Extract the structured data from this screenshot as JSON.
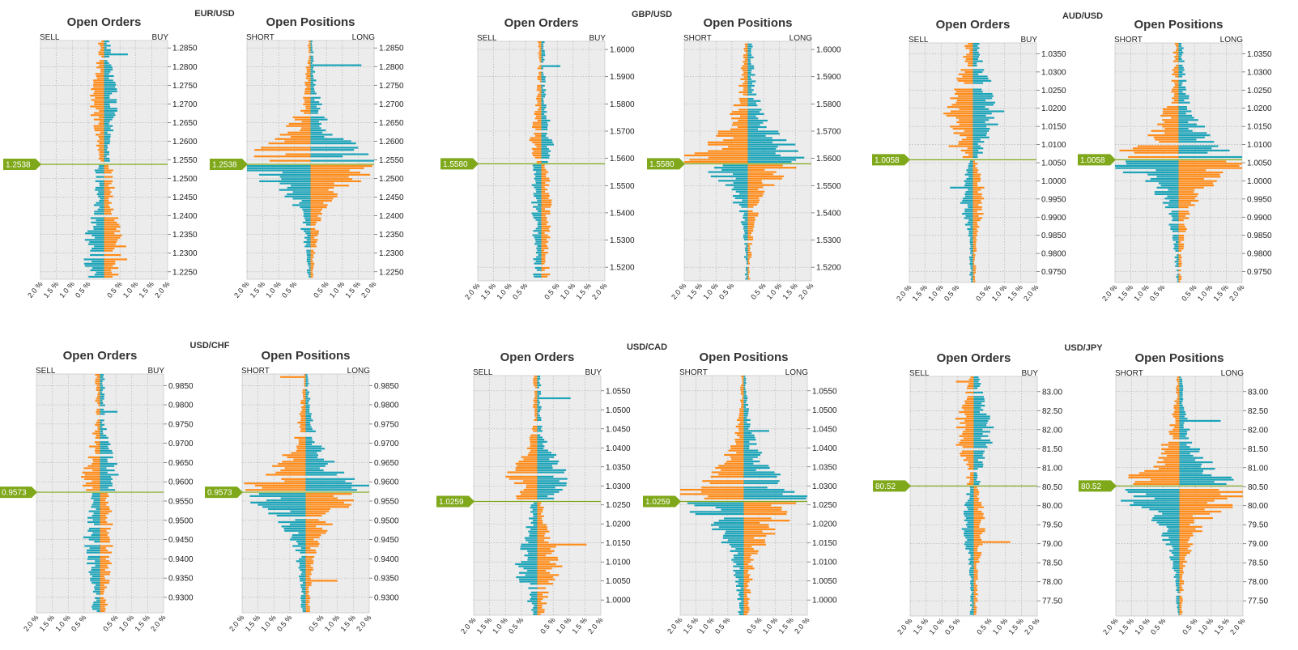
{
  "colors": {
    "orange": "#ff8c1a",
    "teal": "#1ba3b8",
    "grid": "#aaaaaa",
    "plot_bg": "#ececec",
    "marker": "#7fa81a"
  },
  "chart_data": [
    {
      "pair": "EUR/USD",
      "current": "1.2538",
      "current_value": 1.2538,
      "ylim": [
        1.223,
        1.287
      ],
      "yticks": [
        "1.2850",
        "1.2800",
        "1.2750",
        "1.2700",
        "1.2650",
        "1.2600",
        "1.2550",
        "1.2500",
        "1.2450",
        "1.2400",
        "1.2350",
        "1.2300",
        "1.2250"
      ],
      "xticks": [
        "2.0 %",
        "1.5 %",
        "1.0 %",
        "0.5 %",
        "0.5 %",
        "1.0 %",
        "1.5 %",
        "2.0 %"
      ],
      "orders": {
        "type": "bar",
        "title": "Open Orders",
        "left_label": "SELL",
        "right_label": "BUY",
        "above": {
          "shape": "flat",
          "peak": 0.35,
          "at": 1.27,
          "base": 0.15,
          "spike": 0.75,
          "left": "orange",
          "right": "teal"
        },
        "below": {
          "shape": "flat",
          "peak": 0.55,
          "at": 1.23,
          "base": 0.25,
          "spike": 1.45,
          "left": "teal",
          "right": "orange"
        }
      },
      "positions": {
        "type": "bar",
        "title": "Open Positions",
        "left_label": "SHORT",
        "right_label": "LONG",
        "above": {
          "shape": "peak",
          "peak": 1.95,
          "at": 1.255,
          "base": 0.05,
          "spike": 1.6,
          "left": "orange",
          "right": "teal"
        },
        "below": {
          "shape": "peak",
          "peak": 2.0,
          "at": 1.253,
          "base": 0.05,
          "spike": 1.2,
          "left": "teal",
          "right": "orange"
        }
      }
    },
    {
      "pair": "GBP/USD",
      "current": "1.5580",
      "current_value": 1.558,
      "ylim": [
        1.515,
        1.603
      ],
      "yticks": [
        "1.6000",
        "1.5900",
        "1.5800",
        "1.5700",
        "1.5600",
        "1.5500",
        "1.5400",
        "1.5300",
        "1.5200"
      ],
      "xticks": [
        "2.0 %",
        "1.5 %",
        "1.0 %",
        "0.5 %",
        "0.5 %",
        "1.0 %",
        "1.5 %",
        "2.0 %"
      ],
      "orders": {
        "type": "bar",
        "title": "Open Orders",
        "left_label": "SELL",
        "right_label": "BUY",
        "above": {
          "shape": "flat",
          "peak": 0.3,
          "at": 1.565,
          "base": 0.1,
          "spike": 0.6,
          "left": "orange",
          "right": "teal"
        },
        "below": {
          "shape": "flat",
          "peak": 0.25,
          "at": 1.545,
          "base": 0.2,
          "spike": 0.45,
          "left": "teal",
          "right": "orange"
        }
      },
      "positions": {
        "type": "bar",
        "title": "Open Positions",
        "left_label": "SHORT",
        "right_label": "LONG",
        "above": {
          "shape": "peak",
          "peak": 1.9,
          "at": 1.56,
          "base": 0.1,
          "spike": 1.4,
          "left": "orange",
          "right": "teal"
        },
        "below": {
          "shape": "peak",
          "peak": 1.25,
          "at": 1.557,
          "base": 0.05,
          "spike": 0.9,
          "left": "teal",
          "right": "orange"
        }
      }
    },
    {
      "pair": "AUD/USD",
      "current": "1.0058",
      "current_value": 1.0058,
      "ylim": [
        0.972,
        1.038
      ],
      "yticks": [
        "1.0350",
        "1.0300",
        "1.0250",
        "1.0200",
        "1.0150",
        "1.0100",
        "1.0050",
        "1.0000",
        "0.9950",
        "0.9900",
        "0.9850",
        "0.9800",
        "0.9750"
      ],
      "xticks": [
        "2.0 %",
        "1.5 %",
        "1.0 %",
        "0.5 %",
        "0.5 %",
        "1.0 %",
        "1.5 %",
        "2.0 %"
      ],
      "orders": {
        "type": "bar",
        "title": "Open Orders",
        "left_label": "SELL",
        "right_label": "BUY",
        "above": {
          "shape": "flat",
          "peak": 0.75,
          "at": 1.02,
          "base": 0.2,
          "spike": 0.95,
          "left": "orange",
          "right": "teal"
        },
        "below": {
          "shape": "flat",
          "peak": 0.3,
          "at": 0.995,
          "base": 0.08,
          "spike": 0.9,
          "left": "teal",
          "right": "orange"
        }
      },
      "positions": {
        "type": "bar",
        "title": "Open Positions",
        "left_label": "SHORT",
        "right_label": "LONG",
        "above": {
          "shape": "peak",
          "peak": 2.0,
          "at": 1.0055,
          "base": 0.1,
          "spike": 1.2,
          "left": "orange",
          "right": "teal"
        },
        "below": {
          "shape": "peak",
          "peak": 1.95,
          "at": 1.005,
          "base": 0.05,
          "spike": 1.4,
          "left": "teal",
          "right": "orange"
        }
      }
    },
    {
      "pair": "USD/CHF",
      "current": "0.9573",
      "current_value": 0.9573,
      "ylim": [
        0.926,
        0.988
      ],
      "yticks": [
        "0.9850",
        "0.9800",
        "0.9750",
        "0.9700",
        "0.9650",
        "0.9600",
        "0.9550",
        "0.9500",
        "0.9450",
        "0.9400",
        "0.9350",
        "0.9300"
      ],
      "xticks": [
        "2.0 %",
        "1.5 %",
        "1.0 %",
        "0.5 %",
        "0.5 %",
        "1.0 %",
        "1.5 %",
        "2.0 %"
      ],
      "orders": {
        "type": "bar",
        "title": "Open Orders",
        "left_label": "SELL",
        "right_label": "BUY",
        "above": {
          "shape": "flat",
          "peak": 0.45,
          "at": 0.962,
          "base": 0.12,
          "spike": 0.55,
          "left": "orange",
          "right": "teal"
        },
        "below": {
          "shape": "flat",
          "peak": 0.4,
          "at": 0.945,
          "base": 0.2,
          "spike": 0.6,
          "left": "teal",
          "right": "orange"
        }
      },
      "positions": {
        "type": "bar",
        "title": "Open Positions",
        "left_label": "SHORT",
        "right_label": "LONG",
        "above": {
          "shape": "peak",
          "peak": 2.0,
          "at": 0.958,
          "base": 0.05,
          "spike": 1.0,
          "left": "orange",
          "right": "teal"
        },
        "below": {
          "shape": "peak",
          "peak": 1.6,
          "at": 0.956,
          "base": 0.1,
          "spike": 1.0,
          "left": "teal",
          "right": "orange"
        }
      }
    },
    {
      "pair": "USD/CAD",
      "current": "1.0259",
      "current_value": 1.0259,
      "ylim": [
        0.996,
        1.059
      ],
      "yticks": [
        "1.0550",
        "1.0500",
        "1.0450",
        "1.0400",
        "1.0350",
        "1.0300",
        "1.0250",
        "1.0200",
        "1.0150",
        "1.0100",
        "1.0050",
        "1.0000"
      ],
      "xticks": [
        "2.0 %",
        "1.5 %",
        "1.0 %",
        "0.5 %",
        "0.5 %",
        "1.0 %",
        "1.5 %",
        "2.0 %"
      ],
      "orders": {
        "type": "bar",
        "title": "Open Orders",
        "left_label": "SELL",
        "right_label": "BUY",
        "above": {
          "shape": "flat",
          "peak": 0.75,
          "at": 1.032,
          "base": 0.1,
          "spike": 1.05,
          "left": "orange",
          "right": "teal"
        },
        "below": {
          "shape": "flat",
          "peak": 0.6,
          "at": 1.01,
          "base": 0.15,
          "spike": 1.55,
          "left": "teal",
          "right": "orange"
        }
      },
      "positions": {
        "type": "bar",
        "title": "Open Positions",
        "left_label": "SHORT",
        "right_label": "LONG",
        "above": {
          "shape": "peak",
          "peak": 1.95,
          "at": 1.0275,
          "base": 0.05,
          "spike": 0.8,
          "left": "orange",
          "right": "teal"
        },
        "below": {
          "shape": "peak",
          "peak": 1.5,
          "at": 1.023,
          "base": 0.1,
          "spike": 0.7,
          "left": "teal",
          "right": "orange"
        }
      }
    },
    {
      "pair": "USD/JPY",
      "current": "80.52",
      "current_value": 80.52,
      "ylim": [
        77.1,
        83.4
      ],
      "yticks": [
        "83.00",
        "82.50",
        "82.00",
        "81.50",
        "81.00",
        "80.50",
        "80.00",
        "79.50",
        "79.00",
        "78.50",
        "78.00",
        "77.50"
      ],
      "xticks": [
        "2.0 %",
        "1.5 %",
        "1.0 %",
        "0.5 %",
        "0.5 %",
        "1.0 %",
        "1.5 %",
        "2.0 %"
      ],
      "orders": {
        "type": "bar",
        "title": "Open Orders",
        "left_label": "SELL",
        "right_label": "BUY",
        "above": {
          "shape": "flat",
          "peak": 0.5,
          "at": 82.0,
          "base": 0.15,
          "spike": 0.7,
          "left": "orange",
          "right": "teal"
        },
        "below": {
          "shape": "flat",
          "peak": 0.3,
          "at": 79.5,
          "base": 0.1,
          "spike": 1.15,
          "left": "teal",
          "right": "orange"
        }
      },
      "positions": {
        "type": "bar",
        "title": "Open Positions",
        "left_label": "SHORT",
        "right_label": "LONG",
        "above": {
          "shape": "peak",
          "peak": 1.9,
          "at": 80.5,
          "base": 0.05,
          "spike": 1.3,
          "left": "orange",
          "right": "teal"
        },
        "below": {
          "shape": "peak",
          "peak": 2.0,
          "at": 80.3,
          "base": 0.05,
          "spike": 1.1,
          "left": "teal",
          "right": "orange"
        }
      }
    }
  ]
}
